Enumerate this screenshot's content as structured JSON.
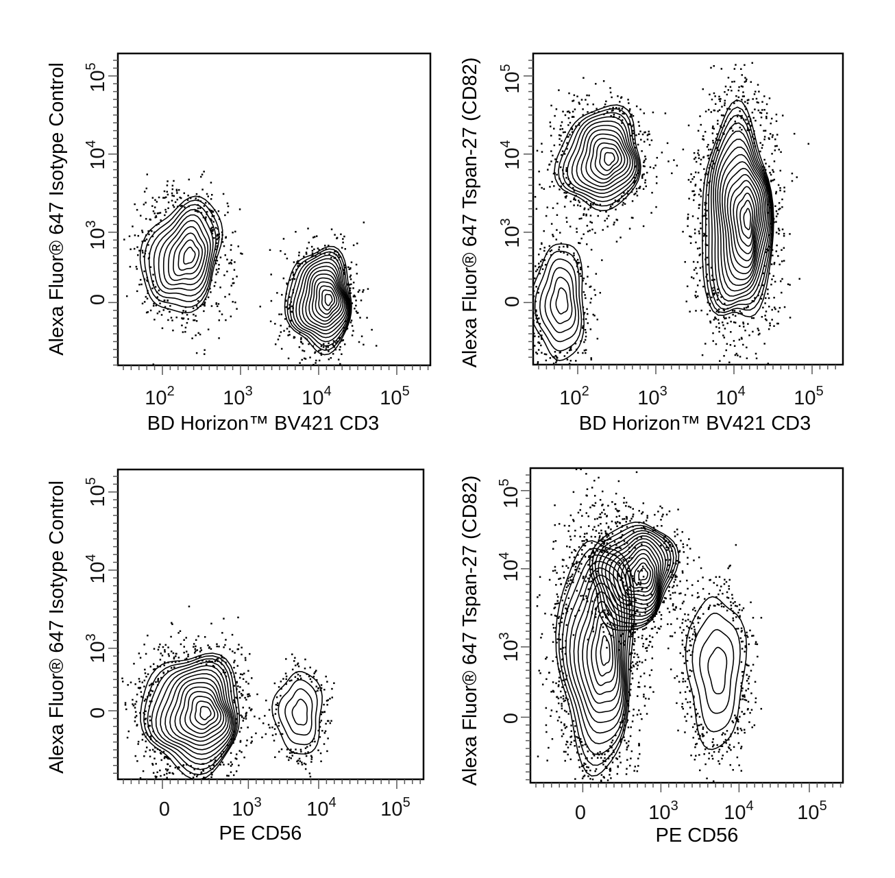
{
  "chart_data": [
    {
      "type": "contour",
      "xlabel": "BD Horizon™ BV421 CD3",
      "ylabel": "Alexa Fluor® 647 Isotype Control",
      "x_scale": "log",
      "y_scale": "biexponential",
      "x_ticks": [
        {
          "value": 100,
          "label": "10",
          "exp": "2"
        },
        {
          "value": 1000,
          "label": "10",
          "exp": "3"
        },
        {
          "value": 10000,
          "label": "10",
          "exp": "4"
        },
        {
          "value": 100000,
          "label": "10",
          "exp": "5"
        }
      ],
      "y_ticks": [
        {
          "value": 0,
          "label": "0",
          "exp": ""
        },
        {
          "value": 1000,
          "label": "10",
          "exp": "3"
        },
        {
          "value": 10000,
          "label": "10",
          "exp": "4"
        },
        {
          "value": 100000,
          "label": "10",
          "exp": "5"
        }
      ],
      "populations": [
        {
          "x": 200,
          "y": 300,
          "levels": 10
        },
        {
          "x": 11000,
          "y": 0,
          "levels": 14
        }
      ]
    },
    {
      "type": "contour",
      "xlabel": "BD Horizon™ BV421 CD3",
      "ylabel": "Alexa Fluor® 647 Tspan-27 (CD82)",
      "x_scale": "log",
      "y_scale": "biexponential",
      "x_ticks": [
        {
          "value": 100,
          "label": "10",
          "exp": "2"
        },
        {
          "value": 1000,
          "label": "10",
          "exp": "3"
        },
        {
          "value": 10000,
          "label": "10",
          "exp": "4"
        },
        {
          "value": 100000,
          "label": "10",
          "exp": "5"
        }
      ],
      "y_ticks": [
        {
          "value": 0,
          "label": "0",
          "exp": ""
        },
        {
          "value": 1000,
          "label": "10",
          "exp": "3"
        },
        {
          "value": 10000,
          "label": "10",
          "exp": "4"
        },
        {
          "value": 100000,
          "label": "10",
          "exp": "5"
        }
      ],
      "populations": [
        {
          "x": 220,
          "y": 9000,
          "levels": 12
        },
        {
          "x": 60,
          "y": 0,
          "levels": 6
        },
        {
          "x": 12000,
          "y": 1500,
          "levels": 16
        }
      ]
    },
    {
      "type": "contour",
      "xlabel": "PE  CD56",
      "ylabel": "Alexa Fluor® 647 Isotype Control",
      "x_scale": "biexponential",
      "y_scale": "biexponential",
      "x_ticks": [
        {
          "value": 0,
          "label": "0",
          "exp": ""
        },
        {
          "value": 1000,
          "label": "10",
          "exp": "3"
        },
        {
          "value": 10000,
          "label": "10",
          "exp": "4"
        },
        {
          "value": 100000,
          "label": "10",
          "exp": "5"
        }
      ],
      "y_ticks": [
        {
          "value": 0,
          "label": "0",
          "exp": ""
        },
        {
          "value": 1000,
          "label": "10",
          "exp": "3"
        },
        {
          "value": 10000,
          "label": "10",
          "exp": "4"
        },
        {
          "value": 100000,
          "label": "10",
          "exp": "5"
        }
      ],
      "populations": [
        {
          "x": 80,
          "y": 0,
          "levels": 14
        },
        {
          "x": 5000,
          "y": 0,
          "levels": 4
        }
      ]
    },
    {
      "type": "contour",
      "xlabel": "PE  CD56",
      "ylabel": "Alexa Fluor® 647 Tspan-27 (CD82)",
      "x_scale": "biexponential",
      "y_scale": "biexponential",
      "x_ticks": [
        {
          "value": 0,
          "label": "0",
          "exp": ""
        },
        {
          "value": 1000,
          "label": "10",
          "exp": "3"
        },
        {
          "value": 10000,
          "label": "10",
          "exp": "4"
        },
        {
          "value": 100000,
          "label": "10",
          "exp": "5"
        }
      ],
      "y_ticks": [
        {
          "value": 0,
          "label": "0",
          "exp": ""
        },
        {
          "value": 1000,
          "label": "10",
          "exp": "3"
        },
        {
          "value": 10000,
          "label": "10",
          "exp": "4"
        },
        {
          "value": 100000,
          "label": "10",
          "exp": "5"
        }
      ],
      "populations": [
        {
          "x": 250,
          "y": 8000,
          "levels": 14
        },
        {
          "x": 40,
          "y": 800,
          "levels": 12
        },
        {
          "x": 5000,
          "y": 300,
          "levels": 4
        }
      ]
    }
  ]
}
